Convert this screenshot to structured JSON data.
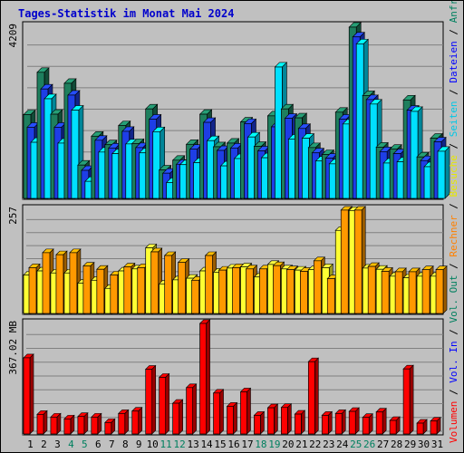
{
  "title": "Tages-Statistik im Monat Mai 2024",
  "chart_data": [
    {
      "type": "bar",
      "panel": "top",
      "y_max_label": "4209",
      "ylim": [
        0,
        4209
      ],
      "grid": true,
      "legend": [
        "Anfragen",
        "Dateien",
        "Seiten"
      ],
      "categories": [
        "1",
        "2",
        "3",
        "4",
        "5",
        "6",
        "7",
        "8",
        "9",
        "10",
        "11",
        "12",
        "13",
        "14",
        "15",
        "16",
        "17",
        "18",
        "19",
        "20",
        "21",
        "22",
        "23",
        "24",
        "25",
        "26",
        "27",
        "28",
        "29",
        "30",
        "31"
      ],
      "series": [
        {
          "name": "Anfragen",
          "color": "#1e7f5e",
          "values": [
            2060,
            3100,
            2070,
            2830,
            820,
            1530,
            1320,
            1790,
            1350,
            2200,
            700,
            940,
            1330,
            2070,
            1270,
            1360,
            1880,
            1280,
            2030,
            2200,
            1980,
            1250,
            1080,
            2120,
            4210,
            2530,
            1260,
            1210,
            2420,
            1020,
            1480
          ]
        },
        {
          "name": "Dateien",
          "color": "#1e3ee6",
          "values": [
            1750,
            2690,
            1750,
            2540,
            690,
            1430,
            1240,
            1650,
            1250,
            1950,
            620,
            840,
            1210,
            1870,
            1180,
            1240,
            1840,
            1170,
            1760,
            1970,
            1720,
            1120,
            990,
            1950,
            3970,
            2430,
            1150,
            1100,
            2170,
            930,
            1390
          ]
        },
        {
          "name": "Seiten",
          "color": "#00e0ff",
          "values": [
            1380,
            2450,
            1360,
            2170,
            420,
            1140,
            1100,
            1340,
            1120,
            1640,
            390,
            830,
            880,
            1420,
            800,
            980,
            1510,
            1000,
            3230,
            1460,
            1480,
            920,
            850,
            1830,
            3800,
            2320,
            870,
            900,
            2140,
            780,
            1160
          ]
        }
      ]
    },
    {
      "type": "bar",
      "panel": "middle",
      "y_max_label": "257",
      "ylim": [
        0,
        257
      ],
      "grid": true,
      "legend": [
        "Besuche",
        "Rechner"
      ],
      "categories": [
        "1",
        "2",
        "3",
        "4",
        "5",
        "6",
        "7",
        "8",
        "9",
        "10",
        "11",
        "12",
        "13",
        "14",
        "15",
        "16",
        "17",
        "18",
        "19",
        "20",
        "21",
        "22",
        "23",
        "24",
        "25",
        "26",
        "27",
        "28",
        "29",
        "30",
        "31"
      ],
      "series": [
        {
          "name": "Besuche",
          "color": "#ffff33",
          "values": [
            95,
            105,
            100,
            100,
            75,
            82,
            62,
            105,
            110,
            162,
            73,
            83,
            87,
            105,
            102,
            112,
            115,
            90,
            121,
            110,
            107,
            108,
            113,
            205,
            254,
            112,
            109,
            92,
            88,
            92,
            92
          ]
        },
        {
          "name": "Rechner",
          "color": "#ff9900",
          "values": [
            113,
            150,
            145,
            150,
            117,
            109,
            95,
            115,
            113,
            152,
            143,
            126,
            82,
            143,
            107,
            113,
            110,
            110,
            118,
            108,
            104,
            130,
            86,
            255,
            255,
            116,
            104,
            103,
            103,
            108,
            108
          ]
        }
      ]
    },
    {
      "type": "bar",
      "panel": "bottom",
      "y_max_label": "367.02 MB",
      "ylim": [
        0,
        367.02
      ],
      "grid": true,
      "legend": [
        "Vol. Out",
        "Vol. In",
        "Volumen"
      ],
      "categories": [
        "1",
        "2",
        "3",
        "4",
        "5",
        "6",
        "7",
        "8",
        "9",
        "10",
        "11",
        "12",
        "13",
        "14",
        "15",
        "16",
        "17",
        "18",
        "19",
        "20",
        "21",
        "22",
        "23",
        "24",
        "25",
        "26",
        "27",
        "28",
        "29",
        "30",
        "31"
      ],
      "series": [
        {
          "name": "Volumen",
          "color": "#ff0000",
          "values": [
            253,
            65,
            56,
            50,
            58,
            56,
            38,
            68,
            76,
            215,
            188,
            102,
            154,
            367,
            136,
            92,
            140,
            62,
            87,
            88,
            66,
            240,
            62,
            68,
            75,
            55,
            73,
            45,
            216,
            36,
            43
          ]
        }
      ]
    }
  ],
  "x_weekend_days": [
    "4",
    "5",
    "11",
    "12",
    "18",
    "19",
    "25",
    "26"
  ],
  "colors": {
    "plot_bg": "#c0c0c0",
    "grid": "#808080",
    "weekday_label": "#000000",
    "weekend_label": "#00805f",
    "title": "#0000cc"
  },
  "right_legend": [
    {
      "text": "Anfragen",
      "color": "#00805f"
    },
    {
      "text": "Dateien",
      "color": "#0000ff"
    },
    {
      "text": "Seiten",
      "color": "#00c8e6"
    },
    {
      "text": "Besuche",
      "color": "#e6e600"
    },
    {
      "text": "Rechner",
      "color": "#ff8000"
    },
    {
      "text": "Vol. Out",
      "color": "#00805f"
    },
    {
      "text": "Vol. In",
      "color": "#0000ff"
    },
    {
      "text": "Volumen",
      "color": "#ff0000"
    }
  ],
  "legend_separator": " / ",
  "legend_separator_color": "#000000"
}
